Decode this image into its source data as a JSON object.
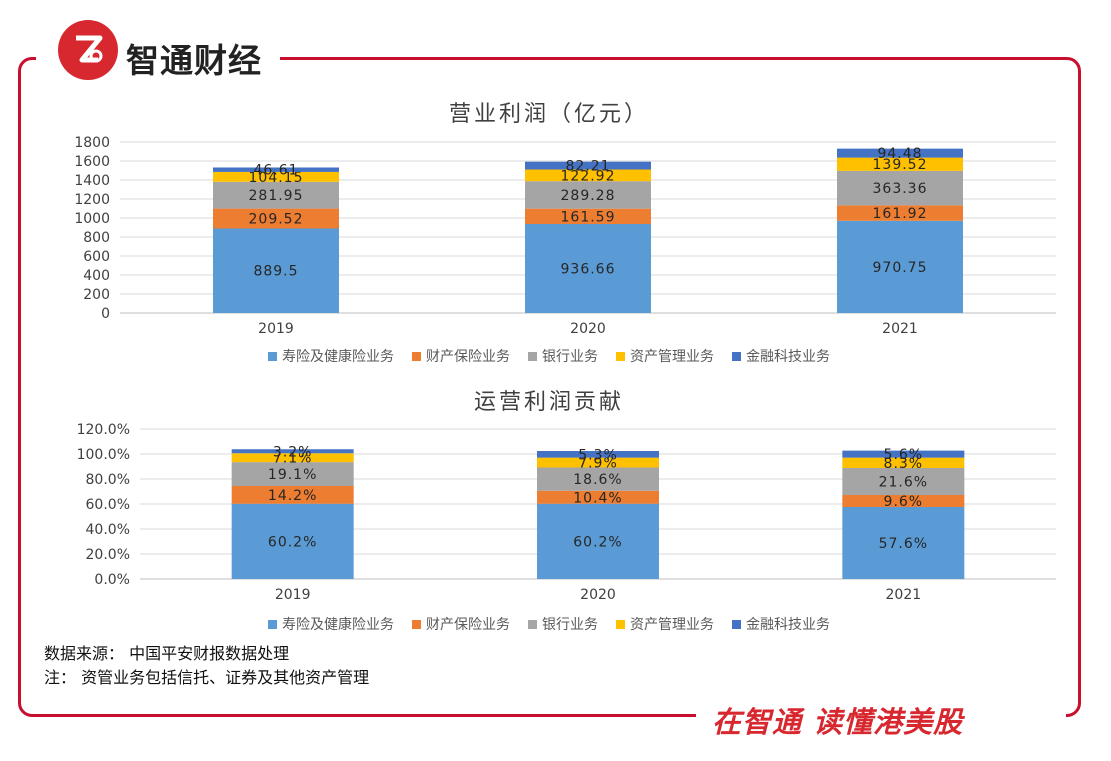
{
  "brand": {
    "name": "智通财经",
    "slogan": "在智通 读懂港美股"
  },
  "colors": {
    "frame": "#c8102e",
    "life": "#5b9bd5",
    "property": "#ed7d31",
    "bank": "#a5a5a5",
    "asset": "#ffc000",
    "fintech": "#4472c4"
  },
  "chart_data": [
    {
      "type": "bar",
      "stacked": true,
      "title": "营业利润（亿元）",
      "categories": [
        "2019",
        "2020",
        "2021"
      ],
      "ylim": [
        0,
        1800
      ],
      "yticks": [
        "0",
        "200",
        "400",
        "600",
        "800",
        "1000",
        "1200",
        "1400",
        "1600",
        "1800"
      ],
      "grid": true,
      "legend_position": "bottom",
      "series": [
        {
          "name": "寿险及健康险业务",
          "values": [
            889.5,
            936.66,
            970.75
          ],
          "labels": [
            "889.5",
            "936.66",
            "970.75"
          ]
        },
        {
          "name": "财产保险业务",
          "values": [
            209.52,
            161.59,
            161.92
          ],
          "labels": [
            "209.52",
            "161.59",
            "161.92"
          ]
        },
        {
          "name": "银行业务",
          "values": [
            281.95,
            289.28,
            363.36
          ],
          "labels": [
            "281.95",
            "289.28",
            "363.36"
          ]
        },
        {
          "name": "资产管理业务",
          "values": [
            104.15,
            122.92,
            139.52
          ],
          "labels": [
            "104.15",
            "122.92",
            "139.52"
          ]
        },
        {
          "name": "金融科技业务",
          "values": [
            46.61,
            82.21,
            94.48
          ],
          "labels": [
            "46.61",
            "82.21",
            "94.48"
          ]
        }
      ]
    },
    {
      "type": "bar",
      "stacked": true,
      "title": "运营利润贡献",
      "categories": [
        "2019",
        "2020",
        "2021"
      ],
      "ylim": [
        0,
        120
      ],
      "yticks": [
        "0.0%",
        "20.0%",
        "40.0%",
        "60.0%",
        "80.0%",
        "100.0%",
        "120.0%"
      ],
      "grid": true,
      "legend_position": "bottom",
      "series": [
        {
          "name": "寿险及健康险业务",
          "values": [
            60.2,
            60.2,
            57.6
          ],
          "labels": [
            "60.2%",
            "60.2%",
            "57.6%"
          ]
        },
        {
          "name": "财产保险业务",
          "values": [
            14.2,
            10.4,
            9.6
          ],
          "labels": [
            "14.2%",
            "10.4%",
            "9.6%"
          ]
        },
        {
          "name": "银行业务",
          "values": [
            19.1,
            18.6,
            21.6
          ],
          "labels": [
            "19.1%",
            "18.6%",
            "21.6%"
          ]
        },
        {
          "name": "资产管理业务",
          "values": [
            7.1,
            7.9,
            8.3
          ],
          "labels": [
            "7.1%",
            "7.9%",
            "8.3%"
          ]
        },
        {
          "name": "金融科技业务",
          "values": [
            3.2,
            5.3,
            5.6
          ],
          "labels": [
            "3.2%",
            "5.3%",
            "5.6%"
          ]
        }
      ]
    }
  ],
  "notes": {
    "source": "数据来源：  中国平安财报数据处理",
    "note": "注：  资管业务包括信托、证券及其他资产管理"
  }
}
